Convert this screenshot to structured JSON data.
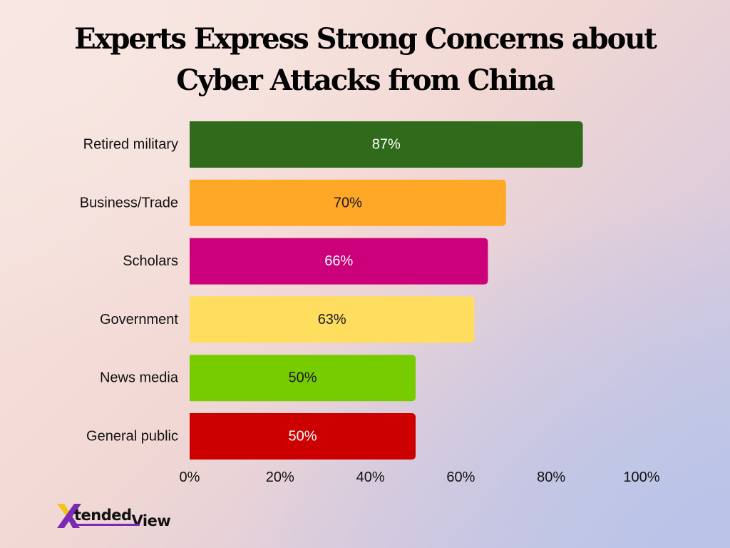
{
  "chart_data": {
    "type": "bar",
    "orientation": "horizontal",
    "title": "Experts Express Strong Concerns about Cyber Attacks from China",
    "categories": [
      "Retired military",
      "Business/Trade",
      "Scholars",
      "Government",
      "News media",
      "General public"
    ],
    "values": [
      87,
      70,
      66,
      63,
      50,
      50
    ],
    "value_labels": [
      "87%",
      "70%",
      "66%",
      "63%",
      "50%",
      "50%"
    ],
    "bar_colors": [
      "#2f6b1b",
      "#ffa726",
      "#cc007a",
      "#ffdd5e",
      "#77cc00",
      "#cc0000"
    ],
    "label_colors": [
      "#ffffff",
      "#1a1a1a",
      "#ffffff",
      "#1a1a1a",
      "#1a1a1a",
      "#ffffff"
    ],
    "x_ticks": [
      0,
      20,
      40,
      60,
      80,
      100
    ],
    "x_tick_labels": [
      "0%",
      "20%",
      "40%",
      "60%",
      "80%",
      "100%"
    ],
    "xlim": [
      0,
      100
    ],
    "grid": false,
    "legend": "none"
  },
  "brand": {
    "logo_mark": "X",
    "logo_word1": "tended",
    "logo_word2": "View",
    "accent_color": "#7a2bb5"
  }
}
